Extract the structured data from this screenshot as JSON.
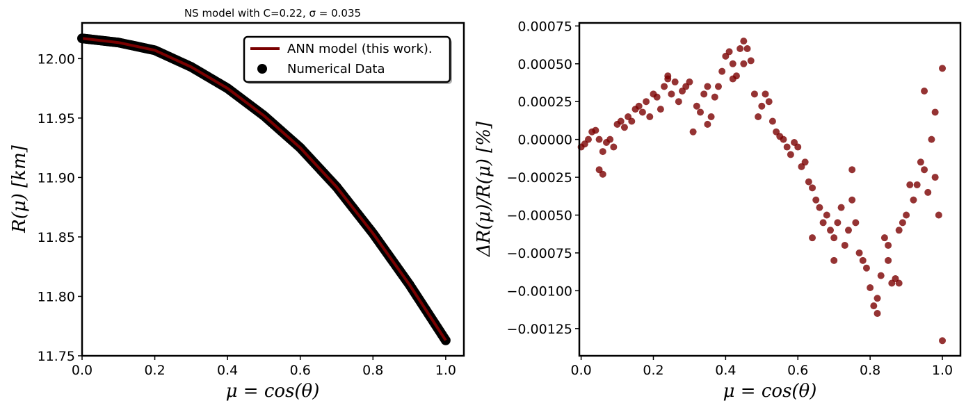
{
  "colors": {
    "model_line": "#7a0000",
    "data_points": "#000000",
    "residual_points": "#7a0000"
  },
  "chart_data": [
    {
      "type": "line",
      "title": "NS model with C=0.22, σ = 0.035",
      "xlabel": "μ = cos(θ)",
      "ylabel": "R(μ) [km]",
      "xlim": [
        0.0,
        1.05
      ],
      "ylim": [
        11.75,
        12.03
      ],
      "xticks": [
        "0.0",
        "0.2",
        "0.4",
        "0.6",
        "0.8",
        "1.0"
      ],
      "yticks": [
        "11.75",
        "11.80",
        "11.85",
        "11.90",
        "11.95",
        "12.00"
      ],
      "legend_position": "top-right",
      "series": [
        {
          "name": "ANN model (this work).",
          "kind": "line",
          "x": [
            0.0,
            0.1,
            0.2,
            0.3,
            0.4,
            0.5,
            0.6,
            0.7,
            0.8,
            0.9,
            1.0
          ],
          "y": [
            12.017,
            12.0135,
            12.007,
            11.993,
            11.975,
            11.952,
            11.925,
            11.892,
            11.853,
            11.81,
            11.763
          ]
        },
        {
          "name": "Numerical Data",
          "kind": "scatter",
          "x": [
            0.0,
            0.1,
            0.2,
            0.3,
            0.4,
            0.5,
            0.6,
            0.7,
            0.8,
            0.9,
            1.0
          ],
          "y": [
            12.017,
            12.0135,
            12.007,
            11.993,
            11.975,
            11.952,
            11.925,
            11.892,
            11.853,
            11.81,
            11.763
          ]
        }
      ]
    },
    {
      "type": "scatter",
      "xlabel": "μ = cos(θ)",
      "ylabel": "ΔR(μ)/R(μ) [%]",
      "xlim": [
        -0.005,
        1.05
      ],
      "ylim": [
        -0.00143,
        0.00077
      ],
      "xticks": [
        "0.0",
        "0.2",
        "0.4",
        "0.6",
        "0.8",
        "1.0"
      ],
      "yticks": [
        "−0.00125",
        "−0.00100",
        "−0.00075",
        "−0.00050",
        "−0.00025",
        "0.00000",
        "0.00025",
        "0.00050",
        "0.00075"
      ],
      "series": [
        {
          "kind": "scatter",
          "x": [
            0.0,
            0.01,
            0.02,
            0.03,
            0.04,
            0.05,
            0.06,
            0.07,
            0.08,
            0.09,
            0.1,
            0.11,
            0.12,
            0.13,
            0.14,
            0.15,
            0.16,
            0.17,
            0.18,
            0.19,
            0.2,
            0.21,
            0.22,
            0.23,
            0.24,
            0.25,
            0.26,
            0.27,
            0.28,
            0.29,
            0.3,
            0.31,
            0.32,
            0.33,
            0.34,
            0.35,
            0.36,
            0.37,
            0.38,
            0.39,
            0.4,
            0.41,
            0.42,
            0.43,
            0.44,
            0.45,
            0.46,
            0.47,
            0.48,
            0.49,
            0.5,
            0.51,
            0.52,
            0.53,
            0.54,
            0.55,
            0.56,
            0.57,
            0.58,
            0.59,
            0.6,
            0.61,
            0.62,
            0.63,
            0.64,
            0.65,
            0.66,
            0.67,
            0.68,
            0.69,
            0.7,
            0.71,
            0.72,
            0.73,
            0.74,
            0.75,
            0.76,
            0.77,
            0.78,
            0.79,
            0.8,
            0.81,
            0.82,
            0.83,
            0.84,
            0.85,
            0.86,
            0.87,
            0.88,
            0.89,
            0.9,
            0.91,
            0.92,
            0.93,
            0.94,
            0.95,
            0.96,
            0.97,
            0.98,
            0.99,
            1.0,
            0.05,
            0.06,
            0.24,
            0.35,
            0.42,
            0.45,
            0.64,
            0.7,
            0.75,
            0.82,
            0.85,
            0.88,
            0.95,
            0.98,
            1.0
          ],
          "y": [
            -5e-05,
            -3e-05,
            0.0,
            5e-05,
            6e-05,
            0.0,
            -8e-05,
            -2e-05,
            0.0,
            -5e-05,
            0.0001,
            0.00012,
            8e-05,
            0.00015,
            0.00012,
            0.0002,
            0.00022,
            0.00018,
            0.00025,
            0.00015,
            0.0003,
            0.00028,
            0.0002,
            0.00035,
            0.00042,
            0.0003,
            0.00038,
            0.00025,
            0.00032,
            0.00035,
            0.00038,
            5e-05,
            0.00022,
            0.00018,
            0.0003,
            0.00035,
            0.00015,
            0.00028,
            0.00035,
            0.00045,
            0.00055,
            0.00058,
            0.0005,
            0.00042,
            0.0006,
            0.00065,
            0.0006,
            0.00052,
            0.0003,
            0.00015,
            0.00022,
            0.0003,
            0.00025,
            0.00012,
            5e-05,
            2e-05,
            0.0,
            -5e-05,
            -0.0001,
            -2e-05,
            -5e-05,
            -0.00018,
            -0.00015,
            -0.00028,
            -0.00032,
            -0.0004,
            -0.00045,
            -0.00055,
            -0.0005,
            -0.0006,
            -0.00065,
            -0.00055,
            -0.00045,
            -0.0007,
            -0.0006,
            -0.0004,
            -0.00055,
            -0.00075,
            -0.0008,
            -0.00085,
            -0.00098,
            -0.0011,
            -0.00105,
            -0.0009,
            -0.00065,
            -0.0008,
            -0.00095,
            -0.00092,
            -0.0006,
            -0.00055,
            -0.0005,
            -0.0003,
            -0.0004,
            -0.0003,
            -0.00015,
            -0.0002,
            -0.00035,
            0.0,
            -0.00025,
            -0.0005,
            0.00047,
            -0.0002,
            -0.00023,
            0.0004,
            0.0001,
            0.0004,
            0.0005,
            -0.00065,
            -0.0008,
            -0.0002,
            -0.00115,
            -0.0007,
            -0.00095,
            0.00032,
            0.00018,
            -0.00133
          ]
        }
      ]
    }
  ]
}
